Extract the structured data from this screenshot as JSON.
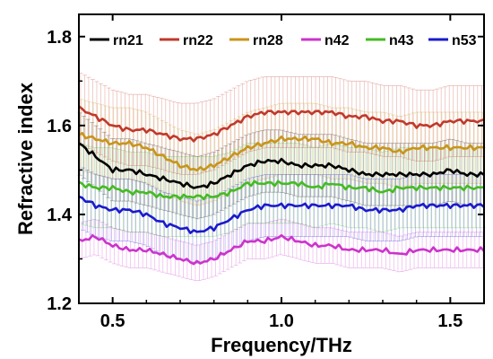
{
  "chart_data": {
    "type": "line",
    "xlabel": "Frequency/THz",
    "ylabel": "Refractive index",
    "xlim": [
      0.4,
      1.6
    ],
    "ylim": [
      1.2,
      1.85
    ],
    "x_ticks": [
      "0.5",
      "1.0",
      "1.5"
    ],
    "y_ticks": [
      "1.2",
      "1.4",
      "1.6",
      "1.8"
    ],
    "x_tick_values": [
      0.5,
      1.0,
      1.5
    ],
    "y_tick_values": [
      1.2,
      1.4,
      1.6,
      1.8
    ],
    "legend_position": "top",
    "error_bars": true,
    "x": [
      0.4,
      0.45,
      0.5,
      0.55,
      0.6,
      0.65,
      0.7,
      0.75,
      0.8,
      0.85,
      0.9,
      0.95,
      1.0,
      1.05,
      1.1,
      1.15,
      1.2,
      1.25,
      1.3,
      1.35,
      1.4,
      1.45,
      1.5,
      1.55,
      1.6
    ],
    "series": [
      {
        "name": "rn21",
        "color": "#000000",
        "error": 0.07,
        "values": [
          1.56,
          1.53,
          1.5,
          1.5,
          1.49,
          1.48,
          1.47,
          1.46,
          1.47,
          1.49,
          1.51,
          1.52,
          1.52,
          1.51,
          1.51,
          1.51,
          1.5,
          1.49,
          1.49,
          1.49,
          1.49,
          1.49,
          1.5,
          1.49,
          1.49
        ]
      },
      {
        "name": "rn22",
        "color": "#c0392b",
        "error": 0.08,
        "values": [
          1.64,
          1.62,
          1.6,
          1.59,
          1.59,
          1.58,
          1.57,
          1.57,
          1.58,
          1.6,
          1.62,
          1.63,
          1.63,
          1.63,
          1.63,
          1.63,
          1.62,
          1.62,
          1.61,
          1.61,
          1.6,
          1.6,
          1.61,
          1.61,
          1.61
        ]
      },
      {
        "name": "rn28",
        "color": "#c8951a",
        "error": 0.08,
        "values": [
          1.58,
          1.57,
          1.56,
          1.56,
          1.55,
          1.53,
          1.51,
          1.5,
          1.51,
          1.53,
          1.55,
          1.56,
          1.57,
          1.57,
          1.57,
          1.56,
          1.56,
          1.55,
          1.55,
          1.54,
          1.55,
          1.55,
          1.55,
          1.55,
          1.55
        ]
      },
      {
        "name": "n42",
        "color": "#cc33cc",
        "error": 0.04,
        "values": [
          1.34,
          1.35,
          1.33,
          1.32,
          1.32,
          1.31,
          1.3,
          1.29,
          1.3,
          1.32,
          1.34,
          1.34,
          1.35,
          1.34,
          1.33,
          1.33,
          1.32,
          1.32,
          1.32,
          1.31,
          1.32,
          1.32,
          1.32,
          1.32,
          1.32
        ]
      },
      {
        "name": "n43",
        "color": "#44bb22",
        "error": 0.09,
        "values": [
          1.47,
          1.46,
          1.46,
          1.45,
          1.45,
          1.44,
          1.44,
          1.44,
          1.44,
          1.45,
          1.47,
          1.47,
          1.47,
          1.47,
          1.46,
          1.47,
          1.46,
          1.46,
          1.45,
          1.46,
          1.46,
          1.46,
          1.46,
          1.46,
          1.46
        ]
      },
      {
        "name": "n53",
        "color": "#1a1acc",
        "error": 0.07,
        "values": [
          1.44,
          1.42,
          1.41,
          1.41,
          1.4,
          1.38,
          1.37,
          1.36,
          1.37,
          1.39,
          1.41,
          1.42,
          1.42,
          1.42,
          1.42,
          1.42,
          1.42,
          1.41,
          1.41,
          1.41,
          1.42,
          1.42,
          1.42,
          1.42,
          1.42
        ]
      }
    ]
  }
}
